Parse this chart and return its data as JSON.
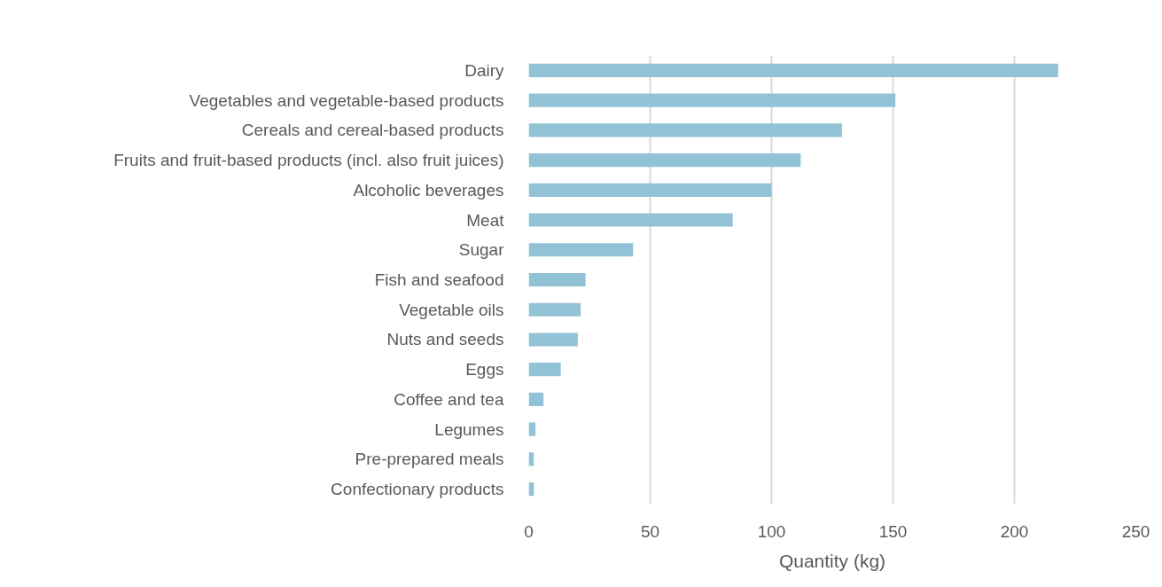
{
  "chart_data": {
    "type": "bar",
    "orientation": "horizontal",
    "xlabel": "Quantity (kg)",
    "categories": [
      "Dairy",
      "Vegetables and vegetable-based products",
      "Cereals and cereal-based products",
      "Fruits and fruit-based products (incl. also fruit juices)",
      "Alcoholic beverages",
      "Meat",
      "Sugar",
      "Fish and seafood",
      "Vegetable oils",
      "Nuts and seeds",
      "Eggs",
      "Coffee and tea",
      "Legumes",
      "Pre-prepared meals",
      "Confectionary products"
    ],
    "values": [
      218,
      151,
      129,
      112,
      100,
      84,
      43,
      23.4,
      21.4,
      20.2,
      13.2,
      6.1,
      2.8,
      2.1,
      2.1
    ],
    "color": "#92c2d5",
    "xlim": [
      0,
      250
    ],
    "xticks": [
      0,
      50,
      100,
      150,
      200,
      250
    ],
    "grid": "x"
  }
}
